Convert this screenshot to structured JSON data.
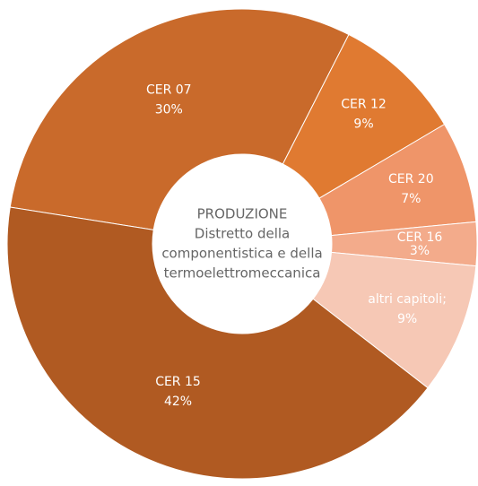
{
  "chart_data": {
    "type": "donut",
    "center_text": [
      "PRODUZIONE",
      "Distretto della",
      "componentistica e della",
      "termoelettromeccanica"
    ],
    "categories": [
      "CER 07",
      "CER 12",
      "CER 20",
      "CER 16",
      "altri capitoli;",
      "CER 15"
    ],
    "values": [
      30,
      9,
      7,
      3,
      9,
      42
    ],
    "value_labels": [
      "30%",
      "9%",
      "7%",
      "3%",
      "9%",
      "42%"
    ],
    "colors": [
      "#c96a2b",
      "#e07a31",
      "#ef9569",
      "#f3ab8b",
      "#f6c8b5",
      "#b05a22"
    ]
  }
}
